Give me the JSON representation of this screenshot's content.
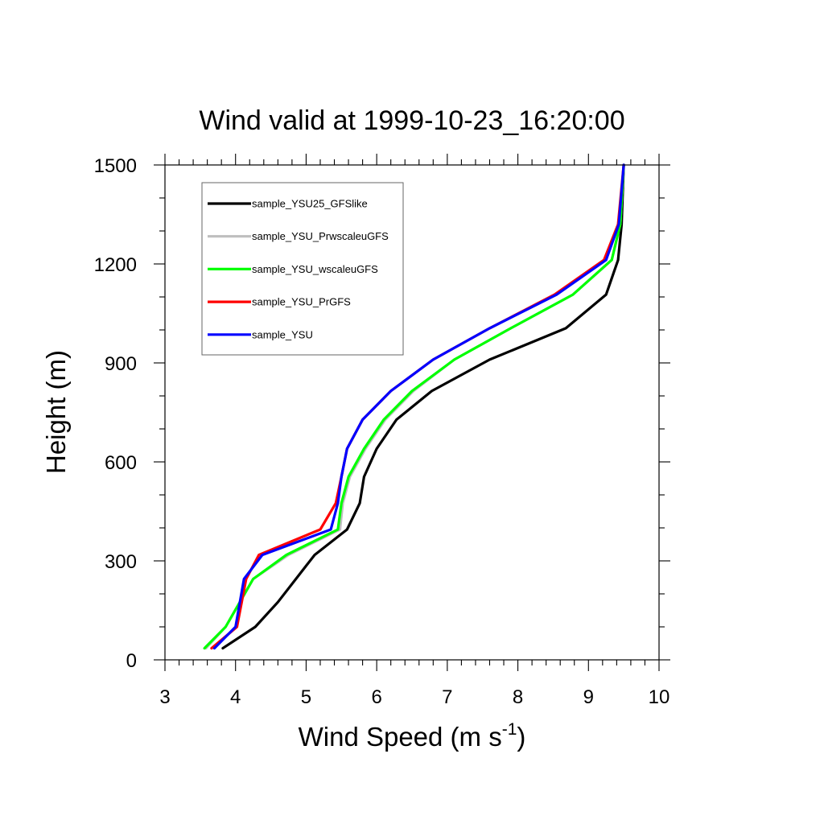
{
  "chart_data": {
    "type": "line",
    "title": "Wind valid at 1999-10-23_16:20:00",
    "xlabel": "Wind Speed (m s",
    "xlabel_sup": "-1",
    "xlabel_end": ")",
    "ylabel": "Height (m)",
    "xlim": [
      3,
      10
    ],
    "ylim": [
      0,
      1500
    ],
    "xticks": [
      3,
      4,
      5,
      6,
      7,
      8,
      9,
      10
    ],
    "yticks": [
      0,
      300,
      600,
      900,
      1200,
      1500
    ],
    "grid": false,
    "legend_position": "top-left",
    "series": [
      {
        "name": "sample_YSU25_GFSlike",
        "color": "#000000",
        "points": [
          [
            3.82,
            35
          ],
          [
            4.28,
            100
          ],
          [
            4.6,
            175
          ],
          [
            5.12,
            318
          ],
          [
            5.58,
            395
          ],
          [
            5.76,
            475
          ],
          [
            5.82,
            555
          ],
          [
            6.0,
            640
          ],
          [
            6.28,
            728
          ],
          [
            6.78,
            815
          ],
          [
            7.6,
            910
          ],
          [
            8.68,
            1005
          ],
          [
            9.25,
            1107
          ],
          [
            9.42,
            1212
          ],
          [
            9.47,
            1320
          ],
          [
            9.5,
            1500
          ]
        ]
      },
      {
        "name": "sample_YSU_PrwscaleuGFS",
        "color": "#bebebe",
        "points": [
          [
            3.58,
            35
          ],
          [
            3.86,
            100
          ],
          [
            4.25,
            245
          ],
          [
            4.75,
            318
          ],
          [
            5.48,
            395
          ],
          [
            5.52,
            475
          ],
          [
            5.62,
            555
          ],
          [
            5.84,
            640
          ],
          [
            6.12,
            728
          ],
          [
            6.52,
            815
          ],
          [
            7.1,
            910
          ],
          [
            7.9,
            1005
          ],
          [
            8.78,
            1107
          ],
          [
            9.33,
            1212
          ],
          [
            9.45,
            1320
          ],
          [
            9.5,
            1500
          ]
        ]
      },
      {
        "name": "sample_YSU_wscaleuGFS",
        "color": "#00ff00",
        "points": [
          [
            3.56,
            35
          ],
          [
            3.86,
            100
          ],
          [
            4.25,
            245
          ],
          [
            4.72,
            318
          ],
          [
            5.45,
            395
          ],
          [
            5.5,
            475
          ],
          [
            5.6,
            555
          ],
          [
            5.82,
            640
          ],
          [
            6.1,
            728
          ],
          [
            6.5,
            815
          ],
          [
            7.1,
            910
          ],
          [
            7.9,
            1005
          ],
          [
            8.78,
            1107
          ],
          [
            9.33,
            1212
          ],
          [
            9.45,
            1320
          ],
          [
            9.5,
            1500
          ]
        ]
      },
      {
        "name": "sample_YSU_PrGFS",
        "color": "#ff0000",
        "points": [
          [
            3.66,
            35
          ],
          [
            4.02,
            100
          ],
          [
            4.15,
            245
          ],
          [
            4.33,
            318
          ],
          [
            5.2,
            395
          ],
          [
            5.42,
            475
          ],
          [
            5.5,
            555
          ],
          [
            5.58,
            640
          ],
          [
            5.8,
            728
          ],
          [
            6.2,
            815
          ],
          [
            6.8,
            910
          ],
          [
            7.6,
            1005
          ],
          [
            8.52,
            1107
          ],
          [
            9.22,
            1212
          ],
          [
            9.42,
            1320
          ],
          [
            9.5,
            1500
          ]
        ]
      },
      {
        "name": "sample_YSU",
        "color": "#0000ff",
        "points": [
          [
            3.7,
            35
          ],
          [
            4.0,
            100
          ],
          [
            4.12,
            245
          ],
          [
            4.38,
            318
          ],
          [
            5.35,
            395
          ],
          [
            5.45,
            475
          ],
          [
            5.5,
            555
          ],
          [
            5.58,
            640
          ],
          [
            5.8,
            728
          ],
          [
            6.2,
            815
          ],
          [
            6.8,
            910
          ],
          [
            7.6,
            1005
          ],
          [
            8.55,
            1107
          ],
          [
            9.25,
            1212
          ],
          [
            9.43,
            1320
          ],
          [
            9.5,
            1500
          ]
        ]
      }
    ]
  }
}
